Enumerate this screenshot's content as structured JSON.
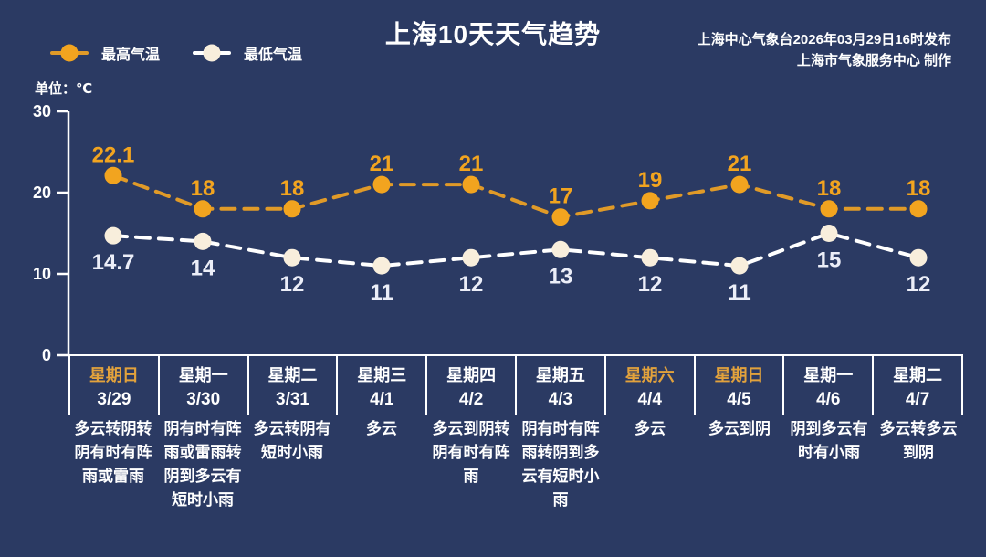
{
  "header": {
    "title": "上海10天天气趋势",
    "source_line1": "上海中心气象台2026年03月29日16时发布",
    "source_line2": "上海市气象服务中心  制作",
    "unit_label": "单位：℃"
  },
  "legend": [
    {
      "label": "最高气温",
      "color": "#F2A41F"
    },
    {
      "label": "最低气温",
      "color": "#F8EEDC"
    }
  ],
  "colors": {
    "background": "#2B3A63",
    "axis": "#FFFFFF",
    "tick_label": "#FFFFFF",
    "high_line": "#E09A28",
    "high_marker": "#F2A41F",
    "high_label": "#F2A41F",
    "low_line": "#FFFFFF",
    "low_marker": "#F8EEDC",
    "low_label": "#ECEEF8",
    "weekend_label": "#E2A23C",
    "weekday_label": "#FFFFFF"
  },
  "chart_data": {
    "type": "line",
    "title": "上海10天天气趋势",
    "ylabel": "单位：℃",
    "unit": "℃",
    "ylim": [
      0,
      30
    ],
    "yticks": [
      0,
      10,
      20,
      30
    ],
    "grid": false,
    "legend_position": "top-left",
    "line_style": "dashed",
    "categories": [
      "3/29",
      "3/30",
      "3/31",
      "4/1",
      "4/2",
      "4/3",
      "4/4",
      "4/5",
      "4/6",
      "4/7"
    ],
    "series": [
      {
        "name": "最高气温",
        "values": [
          22.1,
          18,
          18,
          21,
          21,
          17,
          19,
          21,
          18,
          18
        ]
      },
      {
        "name": "最低气温",
        "values": [
          14.7,
          14,
          12,
          11,
          12,
          13,
          12,
          11,
          15,
          12
        ]
      }
    ]
  },
  "days": [
    {
      "weekday": "星期日",
      "date": "3/29",
      "weather": "多云转阴转阴有时有阵雨或雷雨",
      "is_weekend": true
    },
    {
      "weekday": "星期一",
      "date": "3/30",
      "weather": "阴有时有阵雨或雷雨转阴到多云有短时小雨",
      "is_weekend": false
    },
    {
      "weekday": "星期二",
      "date": "3/31",
      "weather": "多云转阴有短时小雨",
      "is_weekend": false
    },
    {
      "weekday": "星期三",
      "date": "4/1",
      "weather": "多云",
      "is_weekend": false
    },
    {
      "weekday": "星期四",
      "date": "4/2",
      "weather": "多云到阴转阴有时有阵雨",
      "is_weekend": false
    },
    {
      "weekday": "星期五",
      "date": "4/3",
      "weather": "阴有时有阵雨转阴到多云有短时小雨",
      "is_weekend": false
    },
    {
      "weekday": "星期六",
      "date": "4/4",
      "weather": "多云",
      "is_weekend": true
    },
    {
      "weekday": "星期日",
      "date": "4/5",
      "weather": "多云到阴",
      "is_weekend": true
    },
    {
      "weekday": "星期一",
      "date": "4/6",
      "weather": "阴到多云有时有小雨",
      "is_weekend": false
    },
    {
      "weekday": "星期二",
      "date": "4/7",
      "weather": "多云转多云到阴",
      "is_weekend": false
    }
  ]
}
